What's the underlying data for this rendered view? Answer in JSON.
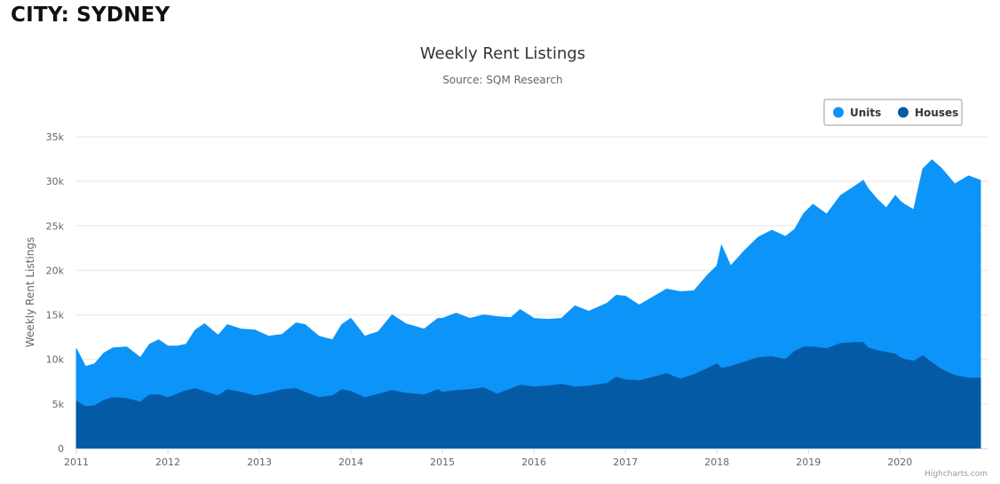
{
  "page": {
    "heading": "CITY: SYDNEY",
    "credit": "Highcharts.com"
  },
  "colors": {
    "units": "#0d94f9",
    "houses": "#055aa6",
    "grid": "#e6e6e6",
    "axis": "#ccd6eb",
    "text": "#333333",
    "label": "#666666"
  },
  "chart_data": {
    "type": "area",
    "stacking": "stacked",
    "title": "Weekly Rent Listings",
    "subtitle": "Source: SQM Research",
    "ylabel": "Weekly Rent Listings",
    "xlabel": "",
    "ylim": [
      0,
      35000
    ],
    "yticks": [
      0,
      5000,
      10000,
      15000,
      20000,
      25000,
      30000,
      35000
    ],
    "ytick_labels": [
      "0",
      "5k",
      "10k",
      "15k",
      "20k",
      "25k",
      "30k",
      "35k"
    ],
    "xlim": [
      2011.0,
      2020.88
    ],
    "xticks": [
      2011,
      2012,
      2013,
      2014,
      2015,
      2016,
      2017,
      2018,
      2019,
      2020
    ],
    "xtick_labels": [
      "2011",
      "2012",
      "2013",
      "2014",
      "2015",
      "2016",
      "2017",
      "2018",
      "2019",
      "2020"
    ],
    "grid": true,
    "legend": "top-right",
    "x": [
      2011.0,
      2011.1,
      2011.2,
      2011.3,
      2011.4,
      2011.55,
      2011.7,
      2011.8,
      2011.9,
      2012.0,
      2012.1,
      2012.2,
      2012.3,
      2012.4,
      2012.55,
      2012.65,
      2012.8,
      2012.95,
      2013.1,
      2013.25,
      2013.4,
      2013.5,
      2013.65,
      2013.8,
      2013.9,
      2014.0,
      2014.15,
      2014.3,
      2014.45,
      2014.6,
      2014.8,
      2014.95,
      2015.0,
      2015.15,
      2015.3,
      2015.45,
      2015.6,
      2015.75,
      2015.85,
      2016.0,
      2016.15,
      2016.3,
      2016.45,
      2016.6,
      2016.8,
      2016.9,
      2017.0,
      2017.15,
      2017.3,
      2017.45,
      2017.6,
      2017.75,
      2017.9,
      2018.0,
      2018.05,
      2018.15,
      2018.3,
      2018.45,
      2018.6,
      2018.75,
      2018.85,
      2018.95,
      2019.05,
      2019.2,
      2019.35,
      2019.5,
      2019.6,
      2019.65,
      2019.75,
      2019.85,
      2019.95,
      2020.0,
      2020.05,
      2020.15,
      2020.25,
      2020.35,
      2020.45,
      2020.6,
      2020.75,
      2020.88
    ],
    "series": [
      {
        "name": "Units",
        "values": [
          5900,
          4500,
          4700,
          5300,
          5600,
          5800,
          5000,
          5700,
          6200,
          5800,
          5400,
          5200,
          6600,
          7600,
          6800,
          7300,
          7100,
          7400,
          6400,
          6200,
          7400,
          7600,
          6900,
          6300,
          7300,
          8200,
          6900,
          7000,
          8500,
          7800,
          7400,
          8000,
          8300,
          8700,
          8000,
          8200,
          8700,
          8000,
          8500,
          7700,
          7500,
          7400,
          9100,
          8400,
          9000,
          9200,
          9400,
          8500,
          9000,
          9500,
          9800,
          9400,
          10500,
          11000,
          13800,
          11300,
          12500,
          13500,
          14200,
          13800,
          13700,
          15000,
          16000,
          15100,
          16600,
          17500,
          18200,
          17900,
          17000,
          16200,
          17800,
          17600,
          17400,
          17000,
          21000,
          22800,
          22600,
          21500,
          22700,
          22200
        ]
      },
      {
        "name": "Houses",
        "values": [
          5300,
          4700,
          4800,
          5400,
          5700,
          5600,
          5200,
          6000,
          6000,
          5700,
          6100,
          6500,
          6700,
          6400,
          5900,
          6600,
          6300,
          5900,
          6200,
          6600,
          6700,
          6300,
          5700,
          5900,
          6600,
          6400,
          5700,
          6100,
          6500,
          6200,
          6000,
          6600,
          6300,
          6500,
          6600,
          6800,
          6100,
          6700,
          7100,
          6900,
          7000,
          7200,
          6900,
          7000,
          7300,
          8000,
          7700,
          7600,
          8000,
          8400,
          7800,
          8300,
          9000,
          9500,
          9000,
          9200,
          9700,
          10200,
          10300,
          10000,
          10900,
          11400,
          11400,
          11200,
          11800,
          11900,
          11900,
          11300,
          11000,
          10800,
          10600,
          10200,
          10000,
          9800,
          10400,
          9600,
          8900,
          8200,
          7900,
          7900
        ]
      }
    ]
  }
}
